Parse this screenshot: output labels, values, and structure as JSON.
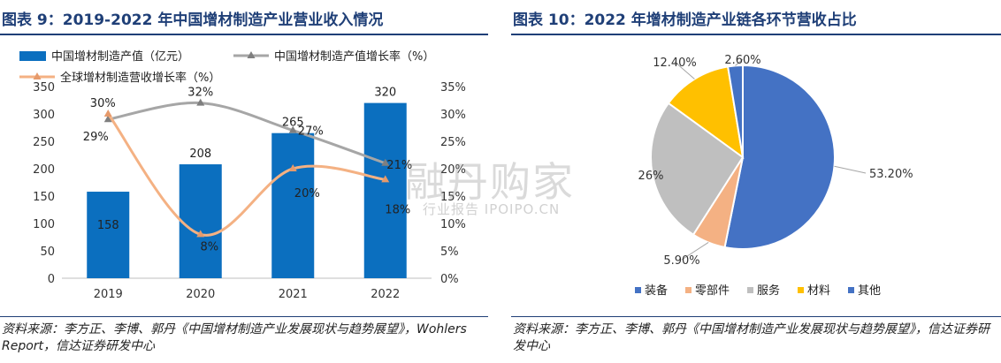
{
  "left": {
    "title": "图表 9：2019-2022 年中国增材制造产业营业收入情况",
    "source": "资料来源：李方正、李博、郭丹《中国增材制造产业发展现状与趋势展望》，Wohlers Report，信达证券研发中心"
  },
  "right": {
    "title": "图表 10：2022 年增材制造产业链各环节营收占比",
    "source": "资料来源：李方正、李博、郭丹《中国增材制造产业发展现状与趋势展望》，信达证券研发中心"
  },
  "watermark": {
    "main": "融丹购家",
    "sub": "行业报告 IPOIPO.CN"
  },
  "chart_data": [
    {
      "type": "bar",
      "categories": [
        "2019",
        "2020",
        "2021",
        "2022"
      ],
      "series": [
        {
          "name": "中国增材制造产值（亿元）",
          "type": "bar",
          "axis": "left",
          "values": [
            158,
            208,
            265,
            320
          ],
          "labels": [
            "158",
            "208",
            "265",
            "320"
          ],
          "color": "#0b6fbf"
        },
        {
          "name": "中国增材制造产值增长率（%）",
          "type": "line",
          "axis": "right",
          "values": [
            29,
            32,
            27,
            21
          ],
          "labels": [
            "29%",
            "32%",
            "27%",
            "21%"
          ],
          "color": "#a6a6a6"
        },
        {
          "name": "全球增材制造营收增长率（%）",
          "type": "line",
          "axis": "right",
          "values": [
            30,
            8,
            20,
            18
          ],
          "labels": [
            "30%",
            "8%",
            "20%",
            "18%"
          ],
          "color": "#f4b183"
        }
      ],
      "y_left": {
        "ylim": [
          0,
          350
        ],
        "ticks": [
          "0",
          "50",
          "100",
          "150",
          "200",
          "250",
          "300",
          "350"
        ]
      },
      "y_right": {
        "ylim": [
          0,
          35
        ],
        "ticks": [
          "0%",
          "5%",
          "10%",
          "15%",
          "20%",
          "25%",
          "30%",
          "35%"
        ]
      },
      "legend": "top",
      "grid": false
    },
    {
      "type": "pie",
      "categories": [
        "装备",
        "零部件",
        "服务",
        "材料",
        "其他"
      ],
      "values": [
        53.2,
        5.9,
        26,
        12.4,
        2.6
      ],
      "labels": [
        "53.20%",
        "5.90%",
        "26%",
        "12.40%",
        "2.60%"
      ],
      "colors": [
        "#4472c4",
        "#f4b183",
        "#bfbfbf",
        "#ffc000",
        "#4472c4"
      ],
      "legend": "bottom"
    }
  ]
}
